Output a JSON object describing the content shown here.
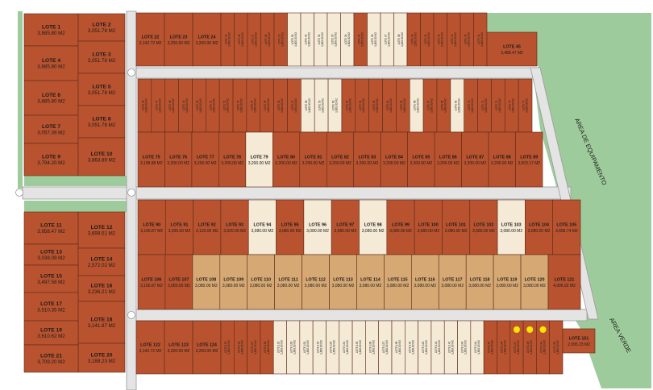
{
  "map": {
    "colors": {
      "brick": "#b9532f",
      "tan": "#d6a873",
      "cream": "#f4ead6",
      "green": "#9ecb9b",
      "street": "#e4e4e4",
      "curb": "#9a9a9a",
      "marker": "#ffe600"
    },
    "zones": {
      "equipment": "AREA DE EQUIPAMENTO",
      "green": "AREA VERDE"
    },
    "leftBlocks": [
      {
        "name": "LOTE 1",
        "area": "3,885.80 M2",
        "color": "brick"
      },
      {
        "name": "LOTE 2",
        "area": "3,051.78 M2",
        "color": "brick"
      },
      {
        "name": "LOTE 3",
        "area": "3,051.78 M2",
        "color": "brick"
      },
      {
        "name": "LOTE 4",
        "area": "3,885.80 M2",
        "color": "brick"
      },
      {
        "name": "LOTE 5",
        "area": "3,051.78 M2",
        "color": "brick"
      },
      {
        "name": "LOTE 6",
        "area": "3,885.80 M2",
        "color": "brick"
      },
      {
        "name": "LOTE 7",
        "area": "3,057.39 M2",
        "color": "brick"
      },
      {
        "name": "LOTE 8",
        "area": "3,051.78 M2",
        "color": "brick"
      },
      {
        "name": "LOTE 9",
        "area": "3,794.20 M2",
        "color": "brick"
      },
      {
        "name": "LOTE 10",
        "area": "3,863.89 M2",
        "color": "brick"
      },
      {
        "name": "LOTE 11",
        "area": "3,958.47 M2",
        "color": "brick"
      },
      {
        "name": "LOTE 12",
        "area": "3,699.51 M2",
        "color": "brick"
      },
      {
        "name": "LOTE 13",
        "area": "3,038.09 M2",
        "color": "brick"
      },
      {
        "name": "LOTE 14",
        "area": "2,572.02 M2",
        "color": "brick"
      },
      {
        "name": "LOTE 15",
        "area": "3,497.58 M2",
        "color": "brick"
      },
      {
        "name": "LOTE 16",
        "area": "3,236.21 M2",
        "color": "brick"
      },
      {
        "name": "LOTE 17",
        "area": "3,510.35 M2",
        "color": "brick"
      },
      {
        "name": "LOTE 18",
        "area": "3,141.87 M2",
        "color": "brick"
      },
      {
        "name": "LOTE 19",
        "area": "3,610.62 M2",
        "color": "brick"
      },
      {
        "name": "LOTE 20",
        "area": "3,188.23 M2",
        "color": "brick"
      },
      {
        "name": "LOTE 21",
        "area": "3,709.20 M2",
        "color": "brick"
      }
    ],
    "rowA": {
      "wide": [
        {
          "name": "LOTE 22",
          "area": "3,142.72 M2",
          "color": "brick"
        },
        {
          "name": "LOTE 23",
          "area": "3,200.00 M2",
          "color": "brick"
        },
        {
          "name": "LOTE 24",
          "area": "3,200.00 M2",
          "color": "brick"
        }
      ],
      "narrow": [
        {
          "name": "LOTE 25",
          "area": "1,600.00 M2",
          "color": "brick"
        },
        {
          "name": "LOTE 26",
          "area": "1,600.00 M2",
          "color": "brick"
        },
        {
          "name": "LOTE 27",
          "area": "1,600.00 M2",
          "color": "brick"
        },
        {
          "name": "LOTE 28",
          "area": "1,600.00 M2",
          "color": "brick"
        },
        {
          "name": "LOTE 29",
          "area": "1,600.00 M2",
          "color": "brick"
        },
        {
          "name": "LOTE 30",
          "area": "1,600.00 M2",
          "color": "cream"
        },
        {
          "name": "LOTE 31",
          "area": "1,600.00 M2",
          "color": "cream"
        },
        {
          "name": "LOTE 32",
          "area": "1,600.00 M2",
          "color": "cream"
        },
        {
          "name": "LOTE 33",
          "area": "1,600.00 M2",
          "color": "cream"
        },
        {
          "name": "LOTE 34",
          "area": "1,600.00 M2",
          "color": "cream"
        },
        {
          "name": "LOTE 35",
          "area": "1,600.00 M2",
          "color": "brick"
        },
        {
          "name": "LOTE 36",
          "area": "1,600.00 M2",
          "color": "cream"
        },
        {
          "name": "LOTE 37",
          "area": "1,600.00 M2",
          "color": "cream"
        },
        {
          "name": "LOTE 38",
          "area": "1,600.00 M2",
          "color": "cream"
        },
        {
          "name": "LOTE 39",
          "area": "1,600.00 M2",
          "color": "brick"
        },
        {
          "name": "LOTE 40",
          "area": "1,600.00 M2",
          "color": "brick"
        },
        {
          "name": "LOTE 41",
          "area": "1,600.00 M2",
          "color": "brick"
        },
        {
          "name": "LOTE 42",
          "area": "1,600.00 M2",
          "color": "brick"
        },
        {
          "name": "LOTE 43",
          "area": "1,600.00 M2",
          "color": "brick"
        },
        {
          "name": "LOTE 44",
          "area": "1,600.00 M2",
          "color": "brick"
        }
      ],
      "end": {
        "name": "LOTE 45",
        "area": "3,488.47 M2",
        "color": "brick"
      }
    },
    "rowB": [
      {
        "name": "LOTE 46",
        "area": "1,600.00 M2",
        "color": "brick"
      },
      {
        "name": "LOTE 47",
        "area": "1,600.00 M2",
        "color": "brick"
      },
      {
        "name": "LOTE 48",
        "area": "1,600.00 M2",
        "color": "brick"
      },
      {
        "name": "LOTE 49",
        "area": "1,600.00 M2",
        "color": "brick"
      },
      {
        "name": "LOTE 50",
        "area": "1,600.00 M2",
        "color": "brick"
      },
      {
        "name": "LOTE 51",
        "area": "1,600.00 M2",
        "color": "brick"
      },
      {
        "name": "LOTE 52",
        "area": "1,600.00 M2",
        "color": "brick"
      },
      {
        "name": "LOTE 53",
        "area": "1,600.00 M2",
        "color": "brick"
      },
      {
        "name": "LOTE 54",
        "area": "1,600.00 M2",
        "color": "brick"
      },
      {
        "name": "LOTE 55",
        "area": "1,600.00 M2",
        "color": "brick"
      },
      {
        "name": "LOTE 56",
        "area": "1,600.00 M2",
        "color": "brick"
      },
      {
        "name": "LOTE 57",
        "area": "1,600.00 M2",
        "color": "brick"
      },
      {
        "name": "LOTE 58",
        "area": "1,600.00 M2",
        "color": "cream"
      },
      {
        "name": "LOTE 59",
        "area": "1,600.00 M2",
        "color": "cream"
      },
      {
        "name": "LOTE 60",
        "area": "1,600.00 M2",
        "color": "cream"
      },
      {
        "name": "LOTE 61",
        "area": "1,600.00 M2",
        "color": "brick"
      },
      {
        "name": "LOTE 62",
        "area": "1,600.00 M2",
        "color": "brick"
      },
      {
        "name": "LOTE 63",
        "area": "1,600.00 M2",
        "color": "brick"
      },
      {
        "name": "LOTE 64",
        "area": "1,600.00 M2",
        "color": "brick"
      },
      {
        "name": "LOTE 65",
        "area": "1,600.00 M2",
        "color": "brick"
      },
      {
        "name": "LOTE 66",
        "area": "1,600.00 M2",
        "color": "cream"
      },
      {
        "name": "LOTE 67",
        "area": "1,600.00 M2",
        "color": "brick"
      },
      {
        "name": "LOTE 68",
        "area": "1,600.00 M2",
        "color": "brick"
      },
      {
        "name": "LOTE 69",
        "area": "1,600.00 M2",
        "color": "cream"
      },
      {
        "name": "LOTE 70",
        "area": "1,600.00 M2",
        "color": "brick"
      },
      {
        "name": "LOTE 71",
        "area": "1,600.00 M2",
        "color": "brick"
      },
      {
        "name": "LOTE 72",
        "area": "1,600.00 M2",
        "color": "brick"
      },
      {
        "name": "LOTE 73",
        "area": "1,600.00 M2",
        "color": "brick"
      },
      {
        "name": "LOTE 74",
        "area": "3,188.16 M2",
        "color": "brick"
      }
    ],
    "rowC": [
      {
        "name": "LOTE 75",
        "area": "3,108.88 M2",
        "color": "brick"
      },
      {
        "name": "LOTE 76",
        "area": "3,200.00 M2",
        "color": "brick"
      },
      {
        "name": "LOTE 77",
        "area": "3,200.00 M2",
        "color": "brick"
      },
      {
        "name": "LOTE 78",
        "area": "3,200.00 M2",
        "color": "brick"
      },
      {
        "name": "LOTE 79",
        "area": "3,200.00 M2",
        "color": "cream"
      },
      {
        "name": "LOTE 80",
        "area": "3,200.00 M2",
        "color": "brick"
      },
      {
        "name": "LOTE 81",
        "area": "3,200.00 M2",
        "color": "brick"
      },
      {
        "name": "LOTE 82",
        "area": "3,200.00 M2",
        "color": "brick"
      },
      {
        "name": "LOTE 83",
        "area": "3,200.00 M2",
        "color": "brick"
      },
      {
        "name": "LOTE 84",
        "area": "3,200.00 M2",
        "color": "brick"
      },
      {
        "name": "LOTE 85",
        "area": "3,200.00 M2",
        "color": "brick"
      },
      {
        "name": "LOTE 86",
        "area": "3,200.00 M2",
        "color": "brick"
      },
      {
        "name": "LOTE 87",
        "area": "3,200.00 M2",
        "color": "brick"
      },
      {
        "name": "LOTE 88",
        "area": "3,200.00 M2",
        "color": "brick"
      },
      {
        "name": "LOTE 89",
        "area": "3,503.17 M2",
        "color": "brick"
      }
    ],
    "rowD": [
      {
        "name": "LOTE 90",
        "area": "3,166.87 M2",
        "color": "brick"
      },
      {
        "name": "LOTE 91",
        "area": "3,200.00 M2",
        "color": "brick"
      },
      {
        "name": "LOTE 92",
        "area": "3,120.00 M2",
        "color": "brick"
      },
      {
        "name": "LOTE 93",
        "area": "3,020.00 M2",
        "color": "brick"
      },
      {
        "name": "LOTE 94",
        "area": "3,080.00 M2",
        "color": "cream"
      },
      {
        "name": "LOTE 95",
        "area": "3,080.00 M2",
        "color": "brick"
      },
      {
        "name": "LOTE 96",
        "area": "3,080.00 M2",
        "color": "cream"
      },
      {
        "name": "LOTE 97",
        "area": "3,080.00 M2",
        "color": "brick"
      },
      {
        "name": "LOTE 98",
        "area": "3,080.00 M2",
        "color": "cream"
      },
      {
        "name": "LOTE 99",
        "area": "3,080.00 M2",
        "color": "brick"
      },
      {
        "name": "LOTE 100",
        "area": "3,080.00 M2",
        "color": "brick"
      },
      {
        "name": "LOTE 101",
        "area": "3,080.00 M2",
        "color": "brick"
      },
      {
        "name": "LOTE 102",
        "area": "3,080.00 M2",
        "color": "brick"
      },
      {
        "name": "LOTE 103",
        "area": "3,080.00 M2",
        "color": "cream"
      },
      {
        "name": "LOTE 104",
        "area": "3,080.00 M2",
        "color": "brick"
      },
      {
        "name": "LOTE 105",
        "area": "3,658.74 M2",
        "color": "brick"
      }
    ],
    "rowE": [
      {
        "name": "LOTE 106",
        "area": "3,166.87 M2",
        "color": "brick"
      },
      {
        "name": "LOTE 107",
        "area": "3,080.00 M2",
        "color": "brick"
      },
      {
        "name": "LOTE 108",
        "area": "3,080.00 M2",
        "color": "tan"
      },
      {
        "name": "LOTE 109",
        "area": "3,080.00 M2",
        "color": "tan"
      },
      {
        "name": "LOTE 110",
        "area": "3,080.00 M2",
        "color": "tan"
      },
      {
        "name": "LOTE 111",
        "area": "3,080.00 M2",
        "color": "tan"
      },
      {
        "name": "LOTE 112",
        "area": "3,080.00 M2",
        "color": "tan"
      },
      {
        "name": "LOTE 113",
        "area": "3,080.00 M2",
        "color": "tan"
      },
      {
        "name": "LOTE 114",
        "area": "3,080.00 M2",
        "color": "tan"
      },
      {
        "name": "LOTE 115",
        "area": "3,080.00 M2",
        "color": "tan"
      },
      {
        "name": "LOTE 116",
        "area": "3,080.00 M2",
        "color": "tan"
      },
      {
        "name": "LOTE 117",
        "area": "3,080.00 M2",
        "color": "tan"
      },
      {
        "name": "LOTE 118",
        "area": "3,080.00 M2",
        "color": "tan"
      },
      {
        "name": "LOTE 119",
        "area": "3,080.00 M2",
        "color": "tan"
      },
      {
        "name": "LOTE 120",
        "area": "3,080.00 M2",
        "color": "tan"
      },
      {
        "name": "LOTE 121",
        "area": "4,996.92 M2",
        "color": "brick"
      }
    ],
    "rowF": {
      "wide": [
        {
          "name": "LOTE 122",
          "area": "3,142.72 M2",
          "color": "brick"
        },
        {
          "name": "LOTE 123",
          "area": "3,200.00 M2",
          "color": "brick"
        },
        {
          "name": "LOTE 124",
          "area": "3,200.00 M2",
          "color": "brick"
        }
      ],
      "narrow": [
        {
          "name": "LOTE 125",
          "area": "1,600.00 M2",
          "color": "brick"
        },
        {
          "name": "LOTE 126",
          "area": "1,600.00 M2",
          "color": "brick"
        },
        {
          "name": "LOTE 127",
          "area": "1,600.00 M2",
          "color": "brick"
        },
        {
          "name": "LOTE 128",
          "area": "1,600.00 M2",
          "color": "brick"
        },
        {
          "name": "LOTE 129",
          "area": "1,600.00 M2",
          "color": "cream"
        },
        {
          "name": "LOTE 130",
          "area": "1,600.00 M2",
          "color": "cream"
        },
        {
          "name": "LOTE 131",
          "area": "1,600.00 M2",
          "color": "cream"
        },
        {
          "name": "LOTE 132",
          "area": "1,600.00 M2",
          "color": "cream"
        },
        {
          "name": "LOTE 133",
          "area": "1,600.00 M2",
          "color": "cream"
        },
        {
          "name": "LOTE 134",
          "area": "1,600.00 M2",
          "color": "cream"
        },
        {
          "name": "LOTE 135",
          "area": "1,600.00 M2",
          "color": "cream"
        },
        {
          "name": "LOTE 136",
          "area": "1,600.00 M2",
          "color": "cream"
        },
        {
          "name": "LOTE 137",
          "area": "1,600.00 M2",
          "color": "cream"
        },
        {
          "name": "LOTE 138",
          "area": "1,600.00 M2",
          "color": "cream"
        },
        {
          "name": "LOTE 139",
          "area": "1,600.00 M2",
          "color": "cream"
        },
        {
          "name": "LOTE 140",
          "area": "1,600.00 M2",
          "color": "cream"
        },
        {
          "name": "LOTE 141",
          "area": "1,600.00 M2",
          "color": "cream"
        },
        {
          "name": "LOTE 142",
          "area": "1,600.00 M2",
          "color": "cream"
        },
        {
          "name": "LOTE 143",
          "area": "1,600.00 M2",
          "color": "cream"
        },
        {
          "name": "LOTE 144",
          "area": "1,600.00 M2",
          "color": "cream"
        },
        {
          "name": "LOTE 145",
          "area": "1,600.00 M2",
          "color": "brick"
        },
        {
          "name": "LOTE 146",
          "area": "1,600.00 M2",
          "color": "brick"
        },
        {
          "name": "LOTE 147",
          "area": "1,600.00 M2",
          "color": "brick"
        },
        {
          "name": "LOTE 148",
          "area": "1,600.00 M2",
          "color": "brick"
        },
        {
          "name": "LOTE 149",
          "area": "1,600.00 M2",
          "color": "brick"
        },
        {
          "name": "LOTE 150",
          "area": "1,600.00 M2",
          "color": "brick"
        }
      ],
      "end": {
        "name": "LOTE 151",
        "area": "2,095.23 M2",
        "color": "brick"
      }
    },
    "markedLots": [
      "LOTE 147",
      "LOTE 148",
      "LOTE 149"
    ]
  }
}
